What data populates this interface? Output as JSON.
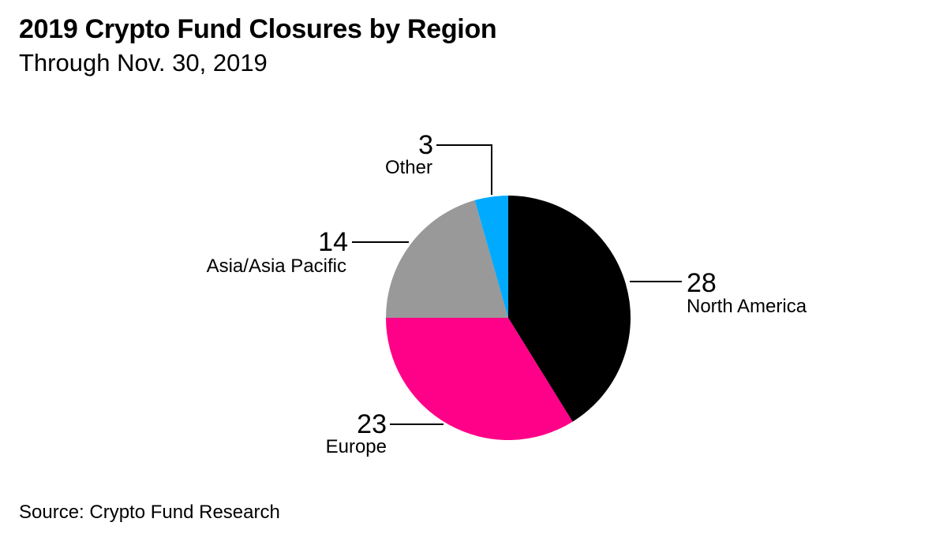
{
  "title": "2019 Crypto Fund Closures by Region",
  "subtitle": "Through Nov. 30, 2019",
  "source": "Source: Crypto Fund Research",
  "colors": {
    "north_america": "#000000",
    "europe": "#ff0088",
    "asia_pacific": "#999999",
    "other": "#00aaff"
  },
  "chart_data": {
    "type": "pie",
    "title": "2019 Crypto Fund Closures by Region",
    "subtitle": "Through Nov. 30, 2019",
    "slices": [
      {
        "label": "North America",
        "value": 28,
        "display": "28",
        "color": "#000000"
      },
      {
        "label": "Europe",
        "value": 23,
        "display": "23",
        "color": "#ff0088"
      },
      {
        "label": "Asia/Asia Pacific",
        "value": 14,
        "display": "14",
        "color": "#999999"
      },
      {
        "label": "Other",
        "value": 3,
        "display": "3",
        "color": "#00aaff"
      }
    ]
  }
}
